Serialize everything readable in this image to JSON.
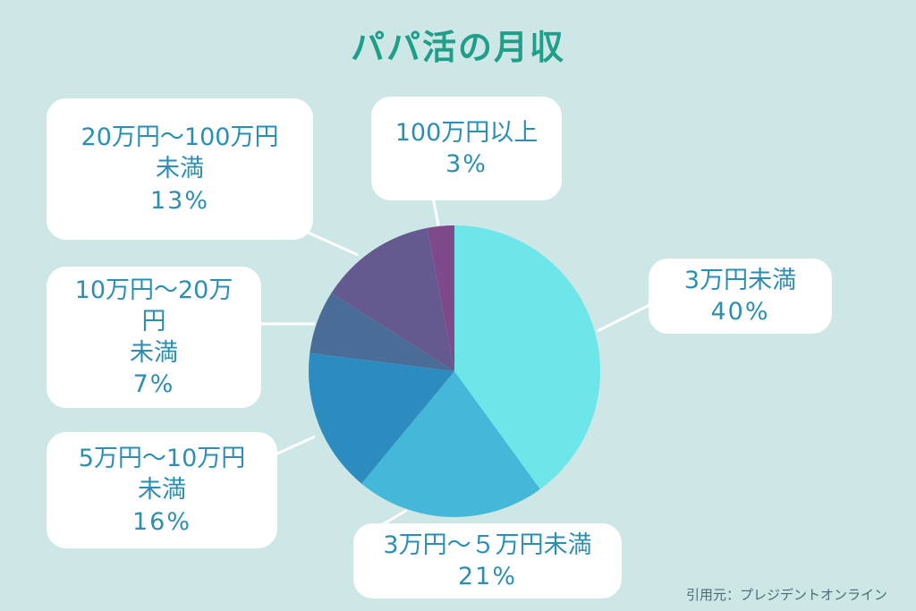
{
  "title": "パパ活の月収",
  "source": "引用元：プレジデントオンライン",
  "chart_data": {
    "type": "pie",
    "title": "パパ活の月収",
    "start_angle_deg": 0,
    "direction": "clockwise",
    "slices": [
      {
        "label_lines": [
          "3万円未満"
        ],
        "percent_label": "40%",
        "value": 40,
        "color": "#6ce6e8"
      },
      {
        "label_lines": [
          "3万円～５万円未満"
        ],
        "percent_label": "21%",
        "value": 21,
        "color": "#43b8d8"
      },
      {
        "label_lines": [
          "5万円～10万円",
          "未満"
        ],
        "percent_label": "16%",
        "value": 16,
        "color": "#2d8cbf"
      },
      {
        "label_lines": [
          "10万円～20万",
          "円",
          "未満"
        ],
        "percent_label": "7%",
        "value": 7,
        "color": "#4a6c97"
      },
      {
        "label_lines": [
          "20万円～100万円",
          "未満"
        ],
        "percent_label": "13%",
        "value": 13,
        "color": "#655a8f"
      },
      {
        "label_lines": [
          "100万円以上"
        ],
        "percent_label": "3%",
        "value": 3,
        "color": "#7e4a8c"
      }
    ]
  }
}
